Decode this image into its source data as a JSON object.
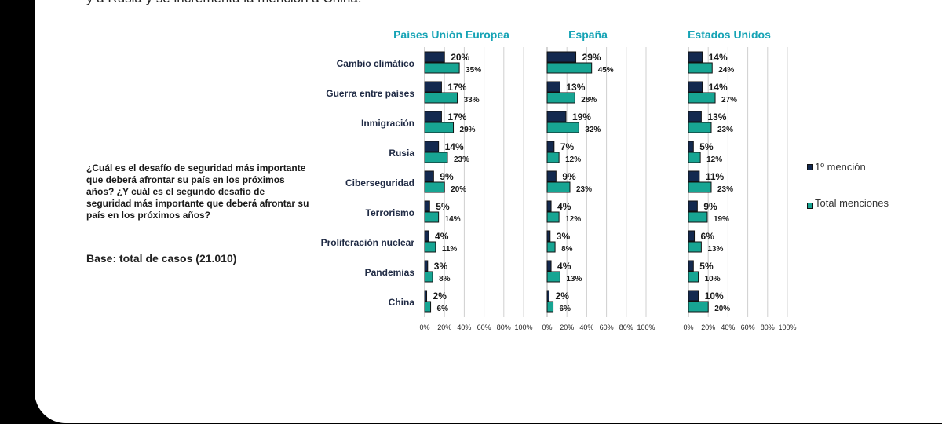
{
  "page": {
    "top_text": "y a Rusia y se incrementa la mención a China.",
    "question": "¿Cuál es el desafío de seguridad más importante que deberá afrontar su país en los próximos años? ¿Y cuál es el segundo desafío de seguridad más importante que deberá afrontar su país en los próximos años?",
    "base": "Base: total de casos (21.010)"
  },
  "legend": [
    {
      "label": "1º mención",
      "color": "#13294f"
    },
    {
      "label": "Total menciones",
      "color": "#17a593"
    }
  ],
  "chart_data": {
    "type": "bar",
    "orientation": "horizontal",
    "categories": [
      "Cambio climático",
      "Guerra entre países",
      "Inmigración",
      "Rusia",
      "Ciberseguridad",
      "Terrorismo",
      "Proliferación nuclear",
      "Pandemias",
      "China"
    ],
    "xlim": [
      0,
      100
    ],
    "x_ticks": [
      "0%",
      "20%",
      "40%",
      "60%",
      "80%",
      "100%"
    ],
    "grid": true,
    "legend_position": "right",
    "series_names": [
      "1º mención",
      "Total menciones"
    ],
    "panels": [
      {
        "title": "Países Unión Europea",
        "series": [
          {
            "name": "1º mención",
            "values": [
              20,
              17,
              17,
              14,
              9,
              5,
              4,
              3,
              2
            ]
          },
          {
            "name": "Total menciones",
            "values": [
              35,
              33,
              29,
              23,
              20,
              14,
              11,
              8,
              6
            ]
          }
        ]
      },
      {
        "title": "España",
        "series": [
          {
            "name": "1º mención",
            "values": [
              29,
              13,
              19,
              7,
              9,
              4,
              3,
              4,
              2
            ]
          },
          {
            "name": "Total menciones",
            "values": [
              45,
              28,
              32,
              12,
              23,
              12,
              8,
              13,
              6
            ]
          }
        ]
      },
      {
        "title": "Estados Unidos",
        "series": [
          {
            "name": "1º mención",
            "values": [
              14,
              14,
              13,
              5,
              11,
              9,
              6,
              5,
              10
            ]
          },
          {
            "name": "Total menciones",
            "values": [
              24,
              27,
              23,
              12,
              23,
              19,
              13,
              10,
              20
            ]
          }
        ]
      }
    ]
  }
}
